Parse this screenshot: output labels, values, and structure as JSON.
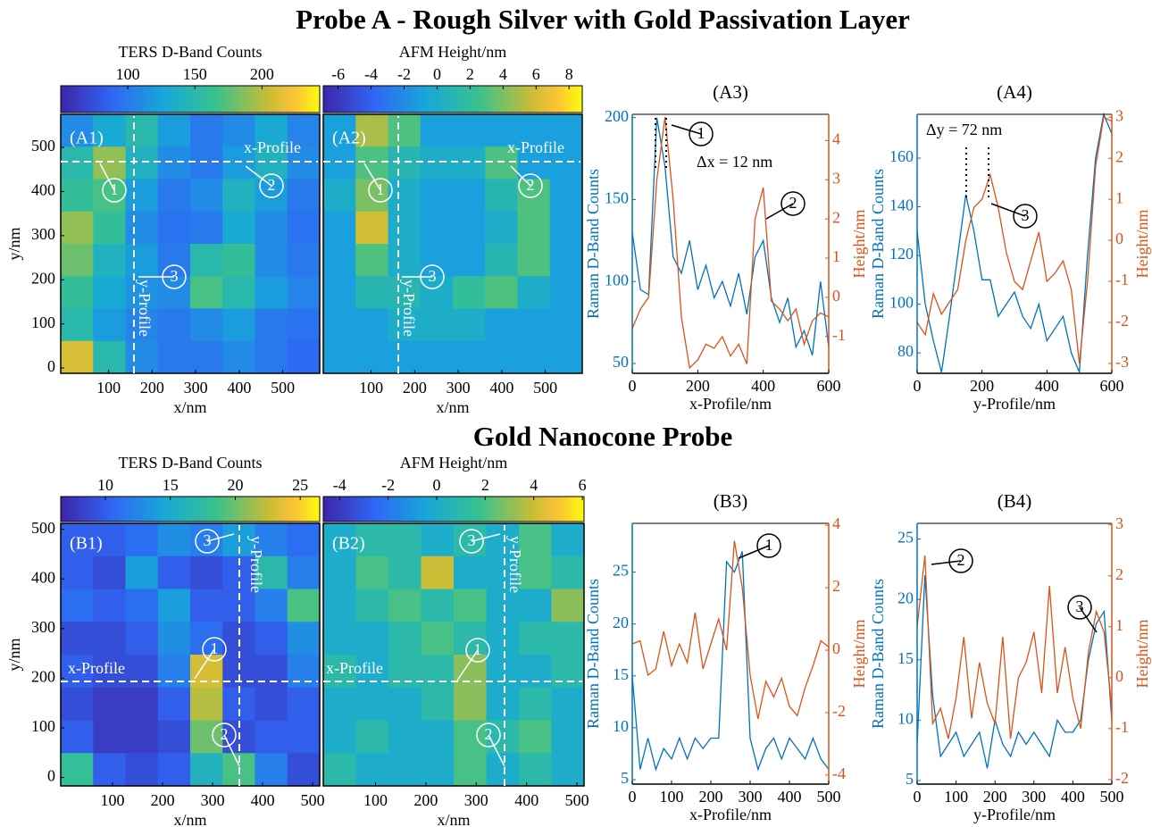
{
  "headings": [
    "Probe A - Rough Silver with Gold Passivation Layer",
    "Gold Nanocone Probe"
  ],
  "chart_data": [
    {
      "type": "heatmap",
      "panel_label": "(A1)",
      "colorbar_label": "TERS  D-Band Counts",
      "clim": [
        50,
        243
      ],
      "cticks": [
        100,
        150,
        200
      ],
      "xlim": [
        -10,
        585
      ],
      "xticks": [
        100,
        200,
        300,
        400,
        500
      ],
      "ylim": [
        -12,
        575
      ],
      "yticks": [
        0,
        100,
        200,
        300,
        400,
        500
      ],
      "xlabel": "x/nm",
      "ylabel": "y/nm",
      "annotations": [
        "x-Profile",
        "y-Profile",
        "1",
        "2",
        "3"
      ],
      "z": [
        [
          110,
          130,
          150,
          120,
          100,
          110,
          130,
          105
        ],
        [
          150,
          190,
          140,
          110,
          100,
          120,
          140,
          110
        ],
        [
          160,
          170,
          120,
          100,
          110,
          140,
          120,
          100
        ],
        [
          190,
          160,
          110,
          95,
          100,
          130,
          110,
          95
        ],
        [
          180,
          140,
          120,
          100,
          150,
          160,
          110,
          100
        ],
        [
          160,
          130,
          115,
          110,
          170,
          150,
          120,
          105
        ],
        [
          150,
          120,
          105,
          100,
          110,
          120,
          100,
          95
        ],
        [
          210,
          150,
          110,
          100,
          100,
          110,
          100,
          90
        ]
      ]
    },
    {
      "type": "heatmap",
      "panel_label": "(A2)",
      "colorbar_label": "AFM Height/nm",
      "clim": [
        -6.9,
        8.8
      ],
      "cticks": [
        -6,
        -4,
        -2,
        0,
        2,
        4,
        6,
        8
      ],
      "xlim": [
        -10,
        585
      ],
      "xticks": [
        100,
        200,
        300,
        400,
        500
      ],
      "ylim": [
        -12,
        575
      ],
      "xlabel": "x/nm",
      "annotations": [
        "x-Profile",
        "y-Profile",
        "1",
        "2",
        "3"
      ],
      "z": [
        [
          -1,
          5,
          3,
          -1,
          -1,
          -1,
          -1,
          -1
        ],
        [
          -1,
          3,
          1,
          0,
          0,
          3,
          -1,
          -1
        ],
        [
          0,
          4,
          0,
          -1,
          -1,
          1,
          3,
          -1
        ],
        [
          -1,
          6,
          0,
          -1,
          -1,
          0,
          3,
          -1
        ],
        [
          -1,
          3,
          0,
          -1,
          -1,
          1,
          3,
          -1
        ],
        [
          -1,
          1,
          1,
          0,
          2,
          3,
          0,
          -1
        ],
        [
          -1,
          -1,
          0,
          0,
          0,
          -1,
          -1,
          -1
        ],
        [
          -1,
          -1,
          -1,
          -1,
          -1,
          -1,
          -1,
          -1
        ]
      ]
    },
    {
      "type": "line",
      "title": "(A3)",
      "xlabel": "x-Profile/nm",
      "ylabel": "Raman D-Band Counts",
      "y2label": "Height/nm",
      "xlim": [
        0,
        600
      ],
      "xticks": [
        0,
        200,
        400,
        600
      ],
      "ylim": [
        44,
        202
      ],
      "yticks": [
        50,
        100,
        150,
        200
      ],
      "y2lim": [
        -1.94,
        4.67
      ],
      "y2ticks": [
        -1,
        0,
        1,
        2,
        3,
        4
      ],
      "annotations": [
        "Δx = 12 nm",
        "1",
        "2"
      ],
      "x": [
        0,
        25,
        50,
        75,
        100,
        125,
        150,
        175,
        200,
        225,
        250,
        275,
        300,
        325,
        350,
        375,
        400,
        425,
        450,
        475,
        500,
        525,
        550,
        575,
        600
      ],
      "series": [
        {
          "color": "#0072bd",
          "values": [
            130,
            95,
            92,
            200,
            170,
            115,
            105,
            125,
            95,
            110,
            90,
            100,
            85,
            105,
            80,
            115,
            125,
            90,
            75,
            90,
            60,
            70,
            55,
            100,
            60
          ]
        },
        {
          "color": "#d95319",
          "axis": "y2",
          "values": [
            -0.8,
            -0.3,
            0,
            3,
            4.6,
            2.5,
            -0.5,
            -1.8,
            -1.6,
            -1.2,
            -1.3,
            -1,
            -1.5,
            -1.2,
            -1.7,
            2,
            2.8,
            -0.1,
            -0.3,
            -0.6,
            -0.3,
            -1.2,
            -0.6,
            -0.4,
            -0.5
          ]
        }
      ]
    },
    {
      "type": "line",
      "title": "(A4)",
      "xlabel": "y-Profile/nm",
      "ylabel": "Raman D-Band Counts",
      "y2label": "Height/nm",
      "xlim": [
        0,
        600
      ],
      "xticks": [
        0,
        200,
        400,
        600
      ],
      "ylim": [
        71.6,
        178
      ],
      "yticks": [
        80,
        100,
        120,
        140,
        160
      ],
      "y2lim": [
        -3.24,
        3.07
      ],
      "y2ticks": [
        -3,
        -2,
        -1,
        0,
        1,
        2,
        3
      ],
      "annotations": [
        "Δy = 72 nm",
        "3"
      ],
      "x": [
        0,
        25,
        50,
        75,
        100,
        125,
        150,
        175,
        200,
        225,
        250,
        275,
        300,
        325,
        350,
        375,
        400,
        425,
        450,
        475,
        500,
        525,
        550,
        575,
        600
      ],
      "series": [
        {
          "color": "#0072bd",
          "values": [
            130,
            100,
            85,
            72,
            95,
            120,
            145,
            130,
            110,
            110,
            95,
            100,
            105,
            95,
            90,
            100,
            85,
            90,
            95,
            80,
            72,
            120,
            160,
            178,
            170
          ]
        },
        {
          "color": "#d95319",
          "axis": "y2",
          "values": [
            -2,
            -2.3,
            -1.3,
            -1.8,
            -1.5,
            -1.2,
            0,
            0.8,
            1,
            1.6,
            0.8,
            -0.3,
            -1,
            -1.2,
            -0.5,
            0.2,
            -1,
            -0.8,
            -0.5,
            -1.2,
            -3,
            -1,
            1.8,
            3,
            2.9
          ]
        }
      ]
    },
    {
      "type": "heatmap",
      "panel_label": "(B1)",
      "colorbar_label": "TERS D-Band Counts",
      "clim": [
        6.56,
        26.5
      ],
      "cticks": [
        10,
        15,
        20,
        25
      ],
      "xlim": [
        -3.6,
        514
      ],
      "xticks": [
        100,
        200,
        300,
        400,
        500
      ],
      "ylim": [
        -17,
        512
      ],
      "yticks": [
        0,
        100,
        200,
        300,
        400,
        500
      ],
      "xlabel": "x/nm",
      "ylabel": "y/nm",
      "annotations": [
        "x-Profile",
        "y-Profile",
        "1",
        "2",
        "3"
      ],
      "z": [
        [
          10,
          10,
          11,
          13,
          12,
          14,
          12,
          11
        ],
        [
          10,
          9,
          14,
          10,
          9,
          10,
          17,
          12
        ],
        [
          11,
          10,
          11,
          14,
          10,
          10,
          12,
          19
        ],
        [
          9,
          9,
          10,
          13,
          11,
          9,
          10,
          13
        ],
        [
          10,
          9,
          9,
          12,
          23,
          9,
          9,
          12
        ],
        [
          9,
          8,
          8,
          10,
          22,
          10,
          9,
          10
        ],
        [
          10,
          8,
          8,
          9,
          20,
          9,
          10,
          10
        ],
        [
          18,
          10,
          9,
          10,
          16,
          19,
          12,
          9
        ]
      ]
    },
    {
      "type": "heatmap",
      "panel_label": "(B2)",
      "colorbar_label": "AFM Height/nm",
      "clim": [
        -4.67,
        6.07
      ],
      "cticks": [
        -4,
        -2,
        0,
        2,
        4,
        6
      ],
      "xlim": [
        -3.6,
        514
      ],
      "xticks": [
        100,
        200,
        300,
        400,
        500
      ],
      "ylim": [
        -17,
        512
      ],
      "xlabel": "x/nm",
      "annotations": [
        "x-Profile",
        "y-Profile",
        "1",
        "2",
        "3"
      ],
      "z": [
        [
          0,
          1,
          1,
          0,
          1,
          0,
          2,
          0
        ],
        [
          0,
          2,
          1,
          4,
          0,
          0,
          2,
          1
        ],
        [
          0,
          1,
          2,
          1,
          2,
          0,
          0,
          3
        ],
        [
          0,
          0,
          1,
          2,
          1,
          0,
          1,
          1
        ],
        [
          1,
          0,
          1,
          1,
          3,
          0,
          0,
          1
        ],
        [
          0,
          0,
          0,
          1,
          3,
          0,
          1,
          0
        ],
        [
          0,
          1,
          0,
          0,
          2,
          1,
          2,
          0
        ],
        [
          1,
          0,
          0,
          0,
          2,
          0,
          1,
          0
        ]
      ]
    },
    {
      "type": "line",
      "title": "(B3)",
      "xlabel": "x-Profile/nm",
      "ylabel": "Raman D-Band Counts",
      "y2label": "Height/nm",
      "xlim": [
        0,
        500
      ],
      "xticks": [
        0,
        100,
        200,
        300,
        400,
        500
      ],
      "ylim": [
        4.57,
        29.7
      ],
      "yticks": [
        5,
        10,
        15,
        20,
        25
      ],
      "y2lim": [
        -4.29,
        4.06
      ],
      "y2ticks": [
        -4,
        -2,
        0,
        2,
        4
      ],
      "annotations": [
        "1"
      ],
      "x": [
        0,
        20,
        40,
        60,
        80,
        100,
        120,
        140,
        160,
        180,
        200,
        220,
        240,
        260,
        280,
        300,
        320,
        340,
        360,
        380,
        400,
        420,
        440,
        460,
        480,
        500
      ],
      "series": [
        {
          "color": "#0072bd",
          "values": [
            15,
            6,
            9,
            6,
            8,
            7,
            9,
            7,
            9,
            8,
            9,
            9,
            26,
            25,
            27,
            9,
            6,
            8,
            9,
            7,
            9,
            8,
            7,
            9,
            7,
            6
          ]
        },
        {
          "color": "#d95319",
          "axis": "y2",
          "values": [
            0.2,
            0.3,
            -0.8,
            -0.6,
            0.6,
            -0.5,
            0.2,
            -0.4,
            1.2,
            -0.6,
            0.2,
            1,
            0,
            3.5,
            2,
            -0.8,
            -2.2,
            -1,
            -1.5,
            -0.9,
            -1.8,
            -2.1,
            -1.2,
            -0.5,
            0.3,
            0.1
          ]
        }
      ]
    },
    {
      "type": "line",
      "title": "(B4)",
      "xlabel": "y-Profile/nm",
      "ylabel": "Raman D-Band Counts",
      "y2label": "Height/nm",
      "xlim": [
        0,
        500
      ],
      "xticks": [
        0,
        100,
        200,
        300,
        400,
        500
      ],
      "ylim": [
        4.7,
        26.3
      ],
      "yticks": [
        5,
        10,
        15,
        20,
        25
      ],
      "y2lim": [
        -2.09,
        3.03
      ],
      "y2ticks": [
        -2,
        -1,
        0,
        1,
        2,
        3
      ],
      "annotations": [
        "2",
        "3"
      ],
      "x": [
        0,
        20,
        40,
        60,
        80,
        100,
        120,
        140,
        160,
        180,
        200,
        220,
        240,
        260,
        280,
        300,
        320,
        340,
        360,
        380,
        400,
        420,
        440,
        460,
        480,
        500
      ],
      "series": [
        {
          "color": "#0072bd",
          "values": [
            8,
            22,
            12,
            7,
            8,
            9,
            7,
            8,
            9,
            6,
            10,
            8,
            7,
            9,
            8,
            9,
            8,
            7,
            10,
            9,
            9,
            10,
            15,
            18,
            19,
            10
          ]
        },
        {
          "color": "#d95319",
          "axis": "y2",
          "values": [
            1,
            2.4,
            -0.9,
            -0.6,
            -1.2,
            -0.4,
            0.8,
            -0.8,
            0.3,
            -0.5,
            -0.9,
            0.8,
            -1.2,
            0,
            0.3,
            0.9,
            -0.3,
            1.8,
            -0.3,
            0.6,
            -0.4,
            -1,
            0.5,
            1.3,
            0.9,
            -0.6
          ]
        }
      ]
    }
  ]
}
